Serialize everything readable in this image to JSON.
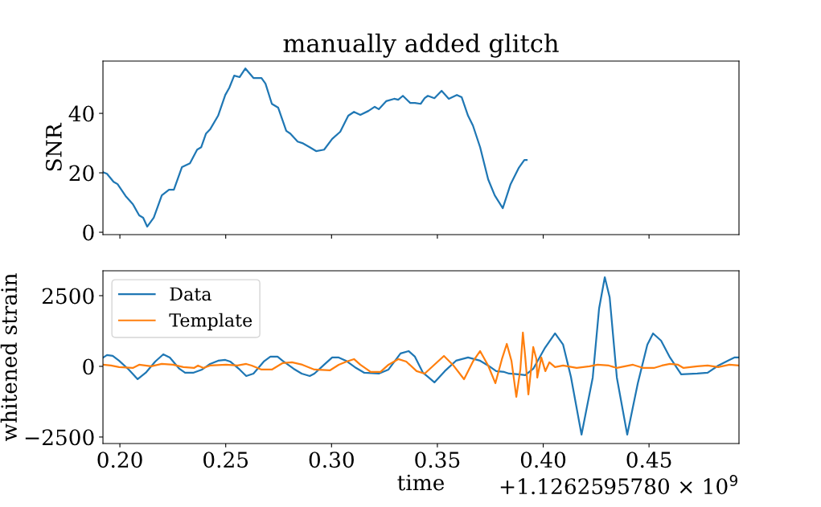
{
  "chart_data": [
    {
      "type": "line",
      "title": "manually added glitch",
      "ylabel": "SNR",
      "xlim": [
        0.192,
        0.4925
      ],
      "ylim": [
        -0.8,
        57.6
      ],
      "xticks": [
        0.2,
        0.25,
        0.3,
        0.35,
        0.4,
        0.45
      ],
      "yticks": [
        0,
        20,
        40
      ],
      "tick_labels": "y",
      "grid": false,
      "legend": false,
      "series": [
        {
          "color": "#1f77b4",
          "x": [
            0.192,
            0.1939,
            0.197,
            0.1989,
            0.2027,
            0.2061,
            0.2091,
            0.211,
            0.2129,
            0.216,
            0.2198,
            0.2232,
            0.2255,
            0.2293,
            0.2331,
            0.2365,
            0.2384,
            0.2407,
            0.2426,
            0.2464,
            0.2498,
            0.2517,
            0.254,
            0.2566,
            0.2593,
            0.2631,
            0.2669,
            0.2688,
            0.2718,
            0.2748,
            0.2786,
            0.2805,
            0.284,
            0.2862,
            0.2897,
            0.2927,
            0.2965,
            0.3003,
            0.3041,
            0.3079,
            0.3106,
            0.3136,
            0.3174,
            0.3204,
            0.3223,
            0.3258,
            0.3296,
            0.3315,
            0.3337,
            0.3372,
            0.3394,
            0.3421,
            0.344,
            0.3455,
            0.3486,
            0.352,
            0.3554,
            0.3592,
            0.3615,
            0.3645,
            0.3668,
            0.3702,
            0.374,
            0.3771,
            0.3809,
            0.3846,
            0.3884,
            0.3911,
            0.3922
          ],
          "values": [
            20.2,
            19.7,
            17.0,
            16.2,
            12.2,
            9.5,
            5.7,
            4.9,
            1.9,
            4.9,
            12.4,
            14.3,
            14.3,
            21.9,
            23.2,
            27.8,
            28.6,
            33.2,
            34.6,
            39.2,
            46.2,
            48.6,
            52.7,
            52.2,
            55.1,
            51.9,
            51.9,
            50.0,
            43.2,
            41.9,
            34.1,
            33.2,
            30.5,
            30.0,
            28.6,
            27.3,
            27.8,
            31.4,
            33.8,
            39.2,
            40.5,
            39.5,
            40.8,
            42.2,
            41.4,
            44.1,
            44.9,
            44.6,
            45.9,
            43.5,
            43.5,
            43.2,
            45.1,
            45.9,
            45.1,
            47.6,
            44.9,
            46.2,
            45.4,
            39.2,
            35.9,
            28.6,
            17.8,
            12.4,
            8.1,
            16.2,
            21.6,
            24.3,
            24.3
          ]
        }
      ]
    },
    {
      "type": "line",
      "xlabel": "time",
      "ylabel": "whitened strain",
      "xlim": [
        0.192,
        0.4925
      ],
      "ylim": [
        -2730,
        3380
      ],
      "xticks": [
        {
          "value": 0.2,
          "label": "0.20"
        },
        {
          "value": 0.25,
          "label": "0.25"
        },
        {
          "value": 0.3,
          "label": "0.30"
        },
        {
          "value": 0.35,
          "label": "0.35"
        },
        {
          "value": 0.4,
          "label": "0.40"
        },
        {
          "value": 0.45,
          "label": "0.45"
        }
      ],
      "yticks": [
        {
          "value": -2500,
          "label": "−2500"
        },
        0,
        2500
      ],
      "grid": false,
      "legend": "top left",
      "annotations": [
        "+1.1262595780 × 10$^{9}$"
      ],
      "series": [
        {
          "name": "Data",
          "color": "#1f77b4",
          "x": [
            0.192,
            0.1939,
            0.1966,
            0.1996,
            0.2042,
            0.2084,
            0.2122,
            0.2167,
            0.2205,
            0.2236,
            0.2281,
            0.2308,
            0.2346,
            0.2388,
            0.2426,
            0.2464,
            0.2498,
            0.2521,
            0.2566,
            0.2597,
            0.2631,
            0.268,
            0.2711,
            0.2745,
            0.2768,
            0.2821,
            0.2859,
            0.2897,
            0.2919,
            0.2965,
            0.3003,
            0.3034,
            0.3068,
            0.311,
            0.3155,
            0.3223,
            0.3269,
            0.3326,
            0.3364,
            0.3394,
            0.3432,
            0.3455,
            0.3486,
            0.3535,
            0.3588,
            0.3645,
            0.3702,
            0.374,
            0.3778,
            0.3816,
            0.3839,
            0.3884,
            0.3915,
            0.3953,
            0.4006,
            0.4056,
            0.4094,
            0.4131,
            0.4181,
            0.4234,
            0.4264,
            0.4291,
            0.4314,
            0.4348,
            0.4397,
            0.4447,
            0.4492,
            0.4519,
            0.4557,
            0.4599,
            0.4652,
            0.4728,
            0.4777,
            0.4827,
            0.4872,
            0.4903,
            0.4925
          ],
          "values": [
            304,
            398,
            369,
            199,
            -114,
            -455,
            -227,
            170,
            426,
            313,
            -85,
            -227,
            -227,
            -114,
            85,
            199,
            227,
            170,
            -114,
            -341,
            -256,
            170,
            341,
            341,
            199,
            -85,
            -256,
            -341,
            -256,
            57,
            313,
            313,
            199,
            -28,
            -227,
            -256,
            -114,
            455,
            540,
            341,
            -227,
            -369,
            -568,
            -170,
            199,
            313,
            199,
            28,
            -170,
            -199,
            -256,
            -284,
            -312,
            -85,
            625,
            1165,
            767,
            -369,
            -2415,
            -398,
            2045,
            3153,
            2443,
            -398,
            -2415,
            -597,
            767,
            1165,
            909,
            313,
            -284,
            -256,
            -227,
            28,
            199,
            313,
            313
          ]
        },
        {
          "name": "Template",
          "color": "#ff7f0e",
          "x": [
            0.192,
            0.1958,
            0.1996,
            0.2061,
            0.2091,
            0.2148,
            0.2198,
            0.2251,
            0.23,
            0.235,
            0.2369,
            0.2395,
            0.2426,
            0.2502,
            0.2555,
            0.2597,
            0.2623,
            0.2669,
            0.2718,
            0.2768,
            0.2813,
            0.2862,
            0.2919,
            0.2992,
            0.3034,
            0.3071,
            0.3106,
            0.3136,
            0.3185,
            0.3231,
            0.3269,
            0.3315,
            0.3353,
            0.3402,
            0.344,
            0.3531,
            0.3573,
            0.3626,
            0.3668,
            0.3702,
            0.374,
            0.3774,
            0.3805,
            0.3828,
            0.385,
            0.3873,
            0.3892,
            0.3904,
            0.3915,
            0.393,
            0.3941,
            0.3953,
            0.3968,
            0.3972,
            0.3991,
            0.401,
            0.4029,
            0.4056,
            0.4094,
            0.4158,
            0.4219,
            0.4257,
            0.431,
            0.4348,
            0.4424,
            0.4473,
            0.4523,
            0.4561,
            0.4599,
            0.4637,
            0.4663,
            0.4728,
            0.4777,
            0.4827,
            0.488,
            0.4925
          ],
          "values": [
            57,
            28,
            -28,
            -57,
            57,
            0,
            85,
            57,
            -28,
            -57,
            28,
            -57,
            28,
            57,
            28,
            85,
            28,
            -114,
            -114,
            114,
            142,
            57,
            -114,
            -142,
            57,
            170,
            256,
            57,
            -199,
            -199,
            57,
            256,
            170,
            -170,
            -256,
            369,
            57,
            -455,
            170,
            540,
            28,
            -597,
            256,
            795,
            199,
            -1080,
            -114,
            1193,
            341,
            -994,
            -227,
            682,
            256,
            -398,
            313,
            -170,
            142,
            -28,
            28,
            -57,
            0,
            57,
            28,
            -57,
            57,
            -57,
            -57,
            28,
            85,
            57,
            -57,
            0,
            28,
            -28,
            57,
            28
          ]
        }
      ]
    }
  ]
}
